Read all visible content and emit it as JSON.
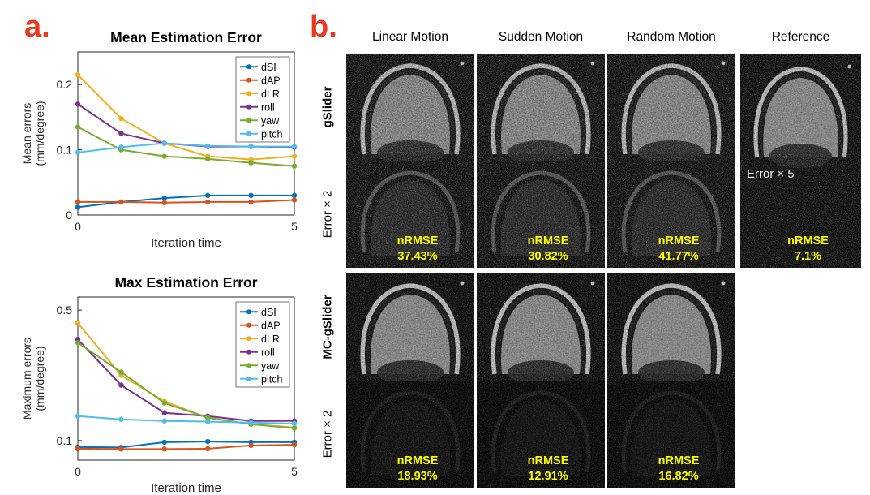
{
  "figure": {
    "panel_a_label": "a.",
    "panel_b_label": "b."
  },
  "colors": {
    "panel_label": "#e8381f",
    "nrmse_text": "#ffff00",
    "series_dSI": "#0072BD",
    "series_dAP": "#D95319",
    "series_dLR": "#EDB120",
    "series_roll": "#7E2F8E",
    "series_yaw": "#77AC30",
    "series_pitch": "#4DBEEE"
  },
  "panel_b": {
    "columns": [
      "Linear Motion",
      "Sudden Motion",
      "Random Motion",
      "Reference"
    ],
    "row_labels": {
      "gslider": "gSlider",
      "gslider_error": "Error × 2",
      "mcgslider": "MC-gSlider",
      "mcgslider_error": "Error × 2"
    },
    "reference_note": "Error × 5",
    "nrmse_label": "nRMSE",
    "nrmse_values": {
      "gslider": [
        "37.43%",
        "30.82%",
        "41.77%"
      ],
      "mcgslider": [
        "18.93%",
        "12.91%",
        "16.82%"
      ],
      "reference": "7.1%"
    }
  },
  "chart_data": [
    {
      "type": "line",
      "title": "Mean Estimation Error",
      "xlabel": "Iteration time",
      "ylabel": "Mean errors\n(mm/degree)",
      "x": [
        0,
        1,
        2,
        3,
        4,
        5
      ],
      "xlim": [
        0,
        5
      ],
      "ylim": [
        0,
        0.25
      ],
      "xticks": [
        0,
        5
      ],
      "yticks": [
        0,
        0.1,
        0.2
      ],
      "legend_position": "upper right",
      "grid": false,
      "series": [
        {
          "name": "dSI",
          "color": "#0072BD",
          "values": [
            0.012,
            0.02,
            0.026,
            0.03,
            0.03,
            0.03
          ]
        },
        {
          "name": "dAP",
          "color": "#D95319",
          "values": [
            0.02,
            0.02,
            0.019,
            0.02,
            0.02,
            0.023
          ]
        },
        {
          "name": "dLR",
          "color": "#EDB120",
          "values": [
            0.215,
            0.148,
            0.11,
            0.09,
            0.085,
            0.09
          ]
        },
        {
          "name": "roll",
          "color": "#7E2F8E",
          "values": [
            0.17,
            0.125,
            0.11,
            0.105,
            0.105,
            0.104
          ]
        },
        {
          "name": "yaw",
          "color": "#77AC30",
          "values": [
            0.135,
            0.1,
            0.09,
            0.086,
            0.08,
            0.075
          ]
        },
        {
          "name": "pitch",
          "color": "#4DBEEE",
          "values": [
            0.096,
            0.104,
            0.11,
            0.106,
            0.105,
            0.105
          ]
        }
      ]
    },
    {
      "type": "line",
      "title": "Max Estimation Error",
      "xlabel": "Iteration time",
      "ylabel": "Maximum errors\n(mm/degree)",
      "x": [
        0,
        1,
        2,
        3,
        4,
        5
      ],
      "xlim": [
        0,
        5
      ],
      "ylim": [
        0.04,
        0.54
      ],
      "xticks": [
        0,
        5
      ],
      "yticks": [
        0.1,
        0.5
      ],
      "legend_position": "upper right",
      "grid": false,
      "series": [
        {
          "name": "dSI",
          "color": "#0072BD",
          "values": [
            0.08,
            0.079,
            0.095,
            0.097,
            0.095,
            0.095
          ]
        },
        {
          "name": "dAP",
          "color": "#D95319",
          "values": [
            0.075,
            0.074,
            0.074,
            0.075,
            0.085,
            0.087
          ]
        },
        {
          "name": "dLR",
          "color": "#EDB120",
          "values": [
            0.46,
            0.3,
            0.22,
            0.17,
            0.15,
            0.14
          ]
        },
        {
          "name": "roll",
          "color": "#7E2F8E",
          "values": [
            0.41,
            0.27,
            0.185,
            0.175,
            0.16,
            0.16
          ]
        },
        {
          "name": "yaw",
          "color": "#77AC30",
          "values": [
            0.4,
            0.31,
            0.215,
            0.17,
            0.15,
            0.138
          ]
        },
        {
          "name": "pitch",
          "color": "#4DBEEE",
          "values": [
            0.175,
            0.165,
            0.16,
            0.158,
            0.155,
            0.152
          ]
        }
      ]
    }
  ]
}
